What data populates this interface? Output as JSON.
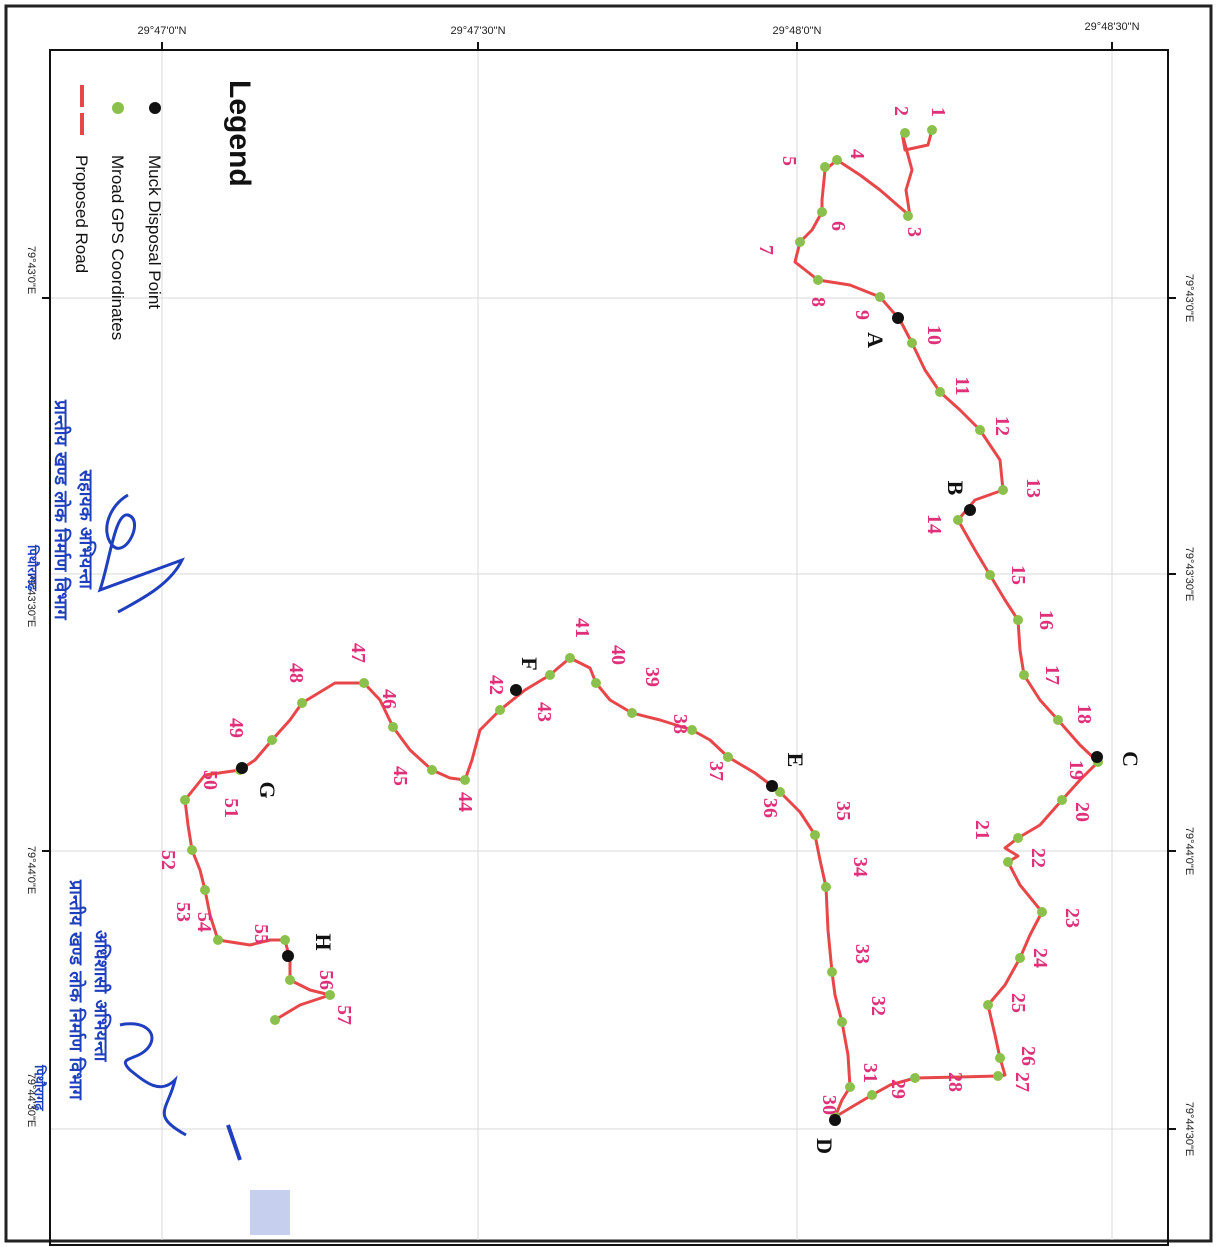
{
  "colors": {
    "road": "#e8474a",
    "gps_point": "#8cc04c",
    "muck_point": "#111111",
    "point_label": "#e0307a",
    "stamp_ink": "#1f3fbf",
    "grid": "#d0d0d0"
  },
  "lat_labels": [
    "29°47'0\"N",
    "29°47'30\"N",
    "29°48'0\"N",
    "29°48'30\"N"
  ],
  "lon_labels": [
    "79°43'0\"E",
    "79°43'30\"E",
    "79°44'0\"E",
    "79°44'30\"E"
  ],
  "legend": {
    "title": "Legend",
    "items": [
      {
        "symbol": "black-dot-icon",
        "label": "Muck Disposal Point"
      },
      {
        "symbol": "green-dot-icon",
        "label": "Mroad GPS Coordinates"
      },
      {
        "symbol": "red-line-icon",
        "label": "Proposed Road"
      }
    ]
  },
  "gps_point_labels": [
    "1",
    "2",
    "3",
    "4",
    "5",
    "6",
    "7",
    "8",
    "9",
    "10",
    "11",
    "12",
    "13",
    "14",
    "15",
    "16",
    "17",
    "18",
    "19",
    "20",
    "21",
    "22",
    "23",
    "24",
    "25",
    "26",
    "27",
    "28",
    "29",
    "30",
    "31",
    "32",
    "33",
    "34",
    "35",
    "36",
    "37",
    "38",
    "39",
    "40",
    "41",
    "42",
    "43",
    "44",
    "45",
    "46",
    "47",
    "48",
    "49",
    "50",
    "51",
    "52",
    "53",
    "54",
    "55",
    "56",
    "57"
  ],
  "muck_points": [
    "A",
    "B",
    "C",
    "D",
    "E",
    "F",
    "G",
    "H"
  ],
  "stamps": {
    "stamp_1_line_1": "सहायक अभियन्ता",
    "stamp_1_line_2": "प्रान्तीय खण्ड लोक निर्माण विभाग",
    "stamp_1_line_3": "पिथौरागढ़",
    "stamp_2_line_1": "अधिशासी अभियन्ता",
    "stamp_2_line_2": "प्रान्तीय खण्ड लोक निर्माण विभाग",
    "stamp_2_line_3": "पिथौरागढ़"
  }
}
